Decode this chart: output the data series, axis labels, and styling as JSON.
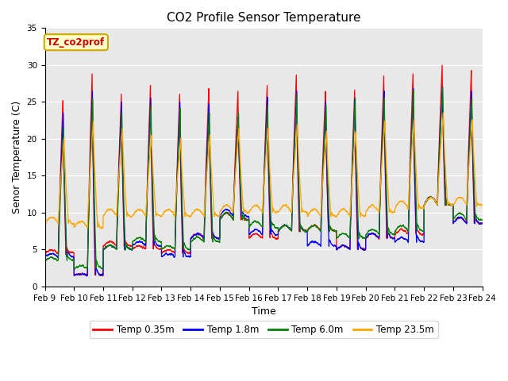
{
  "title": "CO2 Profile Sensor Temperature",
  "ylabel": "Senor Temperature (C)",
  "xlabel": "Time",
  "ylim": [
    0,
    35
  ],
  "series_colors": [
    "red",
    "blue",
    "green",
    "orange"
  ],
  "series_labels": [
    "Temp 0.35m",
    "Temp 1.8m",
    "Temp 6.0m",
    "Temp 23.5m"
  ],
  "xtick_labels": [
    "Feb 9",
    "Feb 10",
    "Feb 11",
    "Feb 12",
    "Feb 13",
    "Feb 14",
    "Feb 15",
    "Feb 16",
    "Feb 17",
    "Feb 18",
    "Feb 19",
    "Feb 20",
    "Feb 21",
    "Feb 22",
    "Feb 23",
    "Feb 24"
  ],
  "tag_label": "TZ_co2prof",
  "background_color": "#e8e8e8",
  "yticks": [
    0,
    5,
    10,
    15,
    20,
    25,
    30,
    35
  ],
  "title_fontsize": 11,
  "axis_label_fontsize": 9,
  "tick_fontsize": 7.5,
  "red_peaks": [
    25.2,
    28.9,
    26.0,
    27.2,
    26.1,
    26.7,
    26.5,
    27.2,
    28.7,
    26.5,
    26.5,
    28.5,
    28.8,
    30.0,
    29.1
  ],
  "blue_peaks": [
    23.5,
    26.5,
    25.0,
    25.5,
    25.0,
    24.8,
    23.0,
    25.5,
    26.5,
    25.0,
    25.5,
    26.5,
    26.8,
    27.0,
    26.5
  ],
  "green_peaks": [
    21.5,
    25.5,
    23.5,
    24.5,
    24.0,
    23.5,
    23.5,
    24.5,
    26.0,
    24.5,
    25.5,
    25.5,
    26.5,
    27.0,
    25.5
  ],
  "orange_peaks": [
    20.0,
    22.5,
    21.5,
    20.5,
    20.0,
    20.5,
    21.5,
    21.5,
    22.0,
    21.0,
    21.0,
    22.5,
    22.5,
    23.5,
    22.5
  ],
  "red_mins": [
    4.5,
    1.5,
    5.5,
    5.0,
    4.5,
    6.5,
    9.0,
    6.5,
    7.5,
    7.5,
    5.0,
    6.5,
    7.0,
    11.0,
    8.5
  ],
  "blue_mins": [
    4.0,
    1.5,
    5.0,
    5.5,
    4.0,
    6.5,
    9.5,
    7.0,
    7.5,
    5.5,
    5.0,
    6.5,
    6.0,
    11.0,
    8.5
  ],
  "green_mins": [
    3.5,
    2.5,
    5.0,
    6.0,
    5.0,
    6.0,
    9.0,
    8.0,
    7.5,
    7.5,
    6.5,
    7.0,
    7.5,
    11.0,
    9.0
  ],
  "orange_mins": [
    8.5,
    8.0,
    9.5,
    9.5,
    9.5,
    9.5,
    10.0,
    10.0,
    10.0,
    9.5,
    9.5,
    10.0,
    10.5,
    11.0,
    11.0
  ]
}
